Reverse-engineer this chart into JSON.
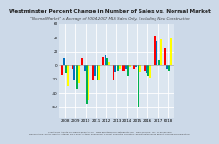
{
  "title": "Westminster Percent Change in Number of Sales vs. Normal Market",
  "subtitle": "\"Normal Market\" is Average of 2004-2007 MLS Sales Only, Excluding New Construction",
  "background_color": "#ccd9e8",
  "plot_bg_color": "#dce6f0",
  "grid_color": "#ffffff",
  "bar_width": 0.2,
  "groups": [
    {
      "label": "2008",
      "values": [
        -14,
        10,
        -12,
        -30
      ]
    },
    {
      "label": "2009",
      "values": [
        -5,
        -20,
        -35,
        -25
      ]
    },
    {
      "label": "2010",
      "values": [
        10,
        -8,
        -55,
        -50
      ]
    },
    {
      "label": "2011",
      "values": [
        -22,
        -15,
        -22,
        -20
      ]
    },
    {
      "label": "2012",
      "values": [
        12,
        15,
        10,
        5
      ]
    },
    {
      "label": "2013",
      "values": [
        -20,
        -10,
        -8,
        -5
      ]
    },
    {
      "label": "2014",
      "values": [
        -8,
        -5,
        -15,
        -3
      ]
    },
    {
      "label": "2015",
      "values": [
        -5,
        -3,
        -60,
        -10
      ]
    },
    {
      "label": "2016",
      "values": [
        -8,
        -12,
        -15,
        -18
      ]
    },
    {
      "label": "2017",
      "values": [
        42,
        35,
        8,
        38
      ]
    },
    {
      "label": "2018",
      "values": [
        25,
        -5,
        -8,
        40
      ]
    }
  ],
  "colors": [
    "#ff0000",
    "#0070c0",
    "#00b050",
    "#ffff00"
  ],
  "ylim": [
    -75,
    60
  ],
  "ytick_labels": [
    "-60",
    "-40",
    "-20",
    "0",
    "20",
    "40",
    "60"
  ],
  "ytick_vals": [
    -60,
    -40,
    -20,
    0,
    20,
    40,
    60
  ],
  "xlabel_fontsize": 3.0,
  "ylabel_fontsize": 3.0,
  "title_fontsize": 4.2,
  "subtitle_fontsize": 3.0,
  "footer1": "Created by Agente For Market Reports LLC   www.agentesformarketreports.com   Data Sources:  MLS & Zillow.com",
  "footer2": "Denver Area: DMAR, REMAX, C-team 2004-2017; C-team 2006-2018; 5-2018; Properties Condition: permitted; Forecast Results and Recommendations"
}
